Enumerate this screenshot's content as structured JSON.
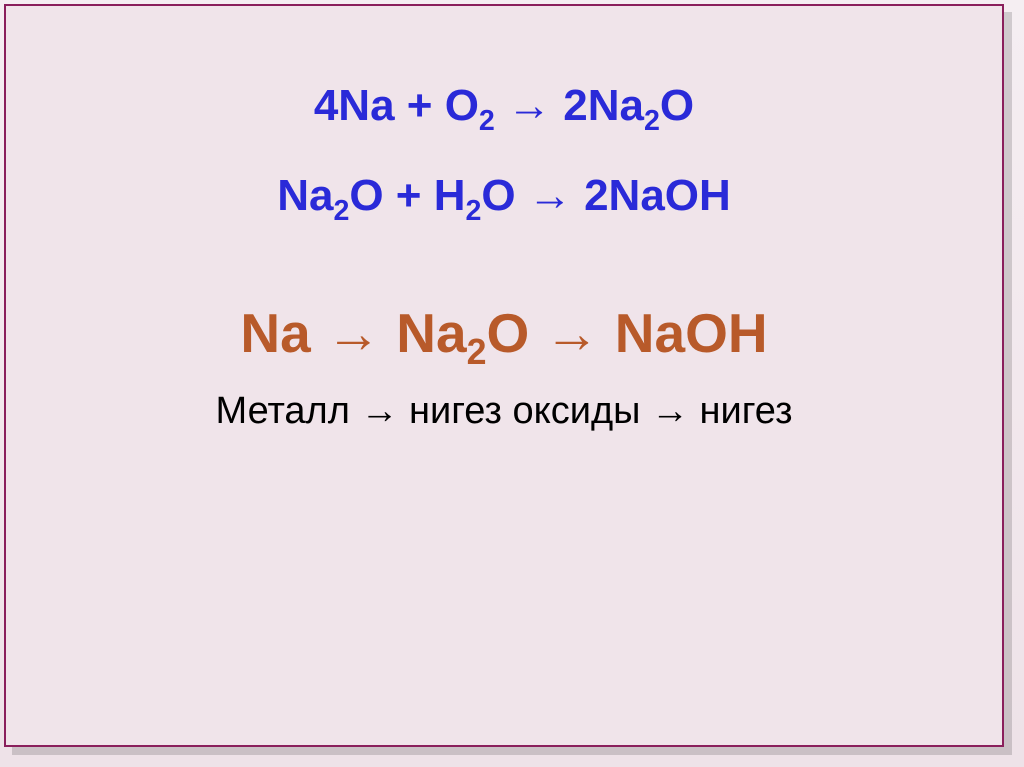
{
  "slide": {
    "background_color": "#f0e4ea",
    "border_color": "#8a1f5c",
    "equations": {
      "eq1": {
        "text": "4Na + O₂ → 2Na₂O",
        "color": "#2a2ad8",
        "fontsize": 44,
        "font_weight": "bold"
      },
      "eq2": {
        "text": "Na₂O + H₂O → 2NaOH",
        "color": "#2a2ad8",
        "fontsize": 44,
        "font_weight": "bold"
      },
      "eq3": {
        "text": "Na → Na₂O → NaOH",
        "color": "#b85a2a",
        "fontsize": 55,
        "font_weight": "bold"
      },
      "eq4": {
        "text": "Металл → нигез оксиды → нигез",
        "color": "#000000",
        "fontsize": 38,
        "font_weight": "normal"
      }
    }
  }
}
